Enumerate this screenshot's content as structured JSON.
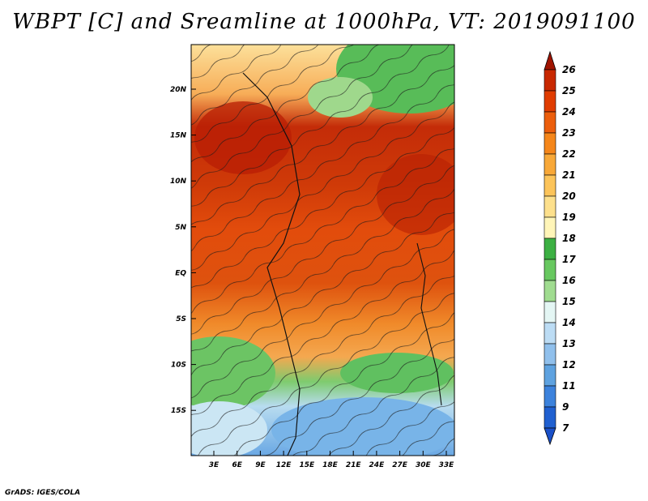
{
  "title": "WBPT [C] and Sreamline at 1000hPa, VT: 2019091100",
  "footer": "GrADS: IGES/COLA",
  "map": {
    "latitude_labels": [
      "20N",
      "15N",
      "10N",
      "5N",
      "EQ",
      "5S",
      "10S",
      "15S"
    ],
    "longitude_labels": [
      "3E",
      "6E",
      "9E",
      "12E",
      "15E",
      "18E",
      "21E",
      "24E",
      "27E",
      "30E",
      "33E"
    ],
    "variable": "wet-bulb potential temperature",
    "units": "C",
    "overlay": "streamlines"
  },
  "colorbar": {
    "labels": [
      "26",
      "25",
      "24",
      "23",
      "22",
      "21",
      "20",
      "19",
      "18",
      "17",
      "16",
      "15",
      "14",
      "13",
      "12",
      "11",
      "9",
      "7"
    ],
    "colors": [
      "#b01800",
      "#c82800",
      "#e03c00",
      "#ec5e0c",
      "#f5861a",
      "#f8a838",
      "#fcc45a",
      "#fde08c",
      "#fff5b8",
      "#3cb043",
      "#68c860",
      "#a0dc90",
      "#e4f6f4",
      "#bcdcf4",
      "#90c0ec",
      "#5ea2e0",
      "#3c82dc",
      "#2060d0"
    ],
    "top_arrow_color": "#a01400",
    "bottom_arrow_color": "#1a50c8"
  }
}
